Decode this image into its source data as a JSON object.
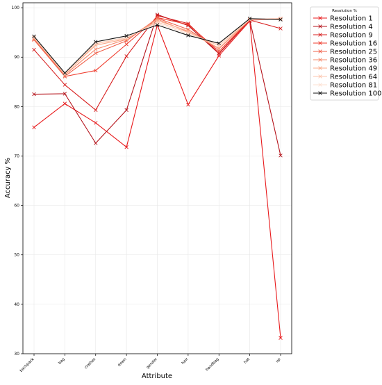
{
  "chart_data": {
    "type": "line",
    "title": "",
    "xlabel": "Attribute",
    "ylabel": "Accuracy %",
    "ylim": [
      30,
      101
    ],
    "yticks": [
      30,
      40,
      50,
      60,
      70,
      80,
      90,
      100
    ],
    "grid": true,
    "legend": {
      "title": "Resolution %",
      "placement": "outside-top-right"
    },
    "categories": [
      "backpack",
      "bag",
      "clothes",
      "down",
      "gender",
      "hair",
      "handbag",
      "hat",
      "up"
    ],
    "series": [
      {
        "name": "Resolution 1",
        "color": "#e8191b",
        "values": [
          75.8,
          80.6,
          76.7,
          71.8,
          96.5,
          80.4,
          90.3,
          97.3,
          33.2
        ]
      },
      {
        "name": "Resolution 4",
        "color": "#b5131b",
        "values": [
          82.5,
          82.6,
          72.6,
          79.3,
          98.6,
          96.4,
          90.7,
          97.5,
          70.1
        ]
      },
      {
        "name": "Resolution 9",
        "color": "#d81e1e",
        "values": [
          91.5,
          84.4,
          79.3,
          90.2,
          98.4,
          96.8,
          90.8,
          97.5,
          95.8
        ]
      },
      {
        "name": "Resolution 16",
        "color": "#ef3b2c",
        "values": [
          93.6,
          86.1,
          87.3,
          92.6,
          98.0,
          96.6,
          91.2,
          97.5,
          97.7
        ]
      },
      {
        "name": "Resolution 25",
        "color": "#f0604a",
        "values": [
          93.5,
          86.1,
          90.8,
          93.3,
          97.9,
          95.6,
          91.7,
          97.6,
          97.8
        ]
      },
      {
        "name": "Resolution 36",
        "color": "#f6896b",
        "values": [
          93.7,
          86.4,
          91.6,
          93.6,
          97.7,
          95.1,
          91.8,
          97.7,
          97.7
        ]
      },
      {
        "name": "Resolution 49",
        "color": "#fbab8b",
        "values": [
          93.9,
          86.6,
          92.4,
          93.7,
          97.4,
          95.3,
          91.8,
          97.6,
          97.8
        ]
      },
      {
        "name": "Resolution 64",
        "color": "#fcc5ae",
        "values": [
          94.0,
          86.6,
          92.7,
          93.9,
          97.1,
          95.0,
          92.3,
          97.6,
          97.7
        ]
      },
      {
        "name": "Resolution 81",
        "color": "#fde0d2",
        "values": [
          94.1,
          86.7,
          92.9,
          94.0,
          96.8,
          94.7,
          92.6,
          97.7,
          97.6
        ]
      },
      {
        "name": "Resolution 100",
        "color": "#111111",
        "values": [
          94.2,
          86.8,
          93.1,
          94.3,
          96.5,
          94.4,
          92.8,
          97.8,
          97.6
        ]
      }
    ]
  }
}
